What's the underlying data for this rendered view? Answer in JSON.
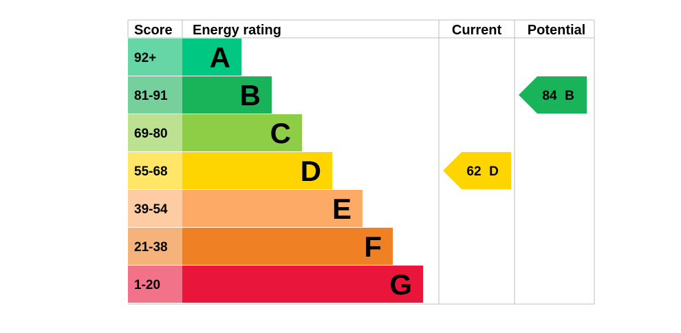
{
  "headers": {
    "score": "Score",
    "energy_rating": "Energy rating",
    "current": "Current",
    "potential": "Potential"
  },
  "chart_data": {
    "type": "bar",
    "bands": [
      {
        "score": "92+",
        "letter": "A",
        "bar_color": "#00c781",
        "score_color": "#66d6a7"
      },
      {
        "score": "81-91",
        "letter": "B",
        "bar_color": "#19b459",
        "score_color": "#75d09b"
      },
      {
        "score": "69-80",
        "letter": "C",
        "bar_color": "#8dce46",
        "score_color": "#bce291"
      },
      {
        "score": "55-68",
        "letter": "D",
        "bar_color": "#ffd500",
        "score_color": "#ffe666"
      },
      {
        "score": "39-54",
        "letter": "E",
        "bar_color": "#fcaa65",
        "score_color": "#fdcca3"
      },
      {
        "score": "21-38",
        "letter": "F",
        "bar_color": "#ef8023",
        "score_color": "#f5b37b"
      },
      {
        "score": "1-20",
        "letter": "G",
        "bar_color": "#e9153b",
        "score_color": "#f27389"
      }
    ],
    "current": {
      "value": 62,
      "letter": "D",
      "color": "#ffd500"
    },
    "potential": {
      "value": 84,
      "letter": "B",
      "color": "#19b459"
    }
  }
}
